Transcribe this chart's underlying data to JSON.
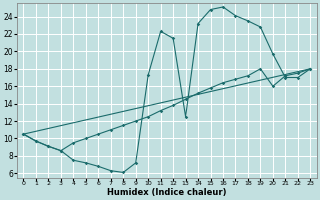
{
  "xlabel": "Humidex (Indice chaleur)",
  "ylabel": "",
  "xlim": [
    -0.5,
    23.5
  ],
  "ylim": [
    5.5,
    25.5
  ],
  "xticks": [
    0,
    1,
    2,
    3,
    4,
    5,
    6,
    7,
    8,
    9,
    10,
    11,
    12,
    13,
    14,
    15,
    16,
    17,
    18,
    19,
    20,
    21,
    22,
    23
  ],
  "yticks": [
    6,
    8,
    10,
    12,
    14,
    16,
    18,
    20,
    22,
    24
  ],
  "bg_color": "#c2e0e0",
  "grid_color": "#ffffff",
  "line_color": "#1a6b6b",
  "line1_x": [
    0,
    1,
    2,
    3,
    4,
    5,
    6,
    7,
    8,
    9,
    10,
    11,
    12,
    13,
    14,
    15,
    16,
    17,
    18,
    19,
    20,
    21,
    22,
    23
  ],
  "line1_y": [
    10.5,
    9.7,
    9.1,
    8.6,
    7.5,
    7.2,
    6.8,
    6.3,
    6.1,
    7.2,
    17.3,
    22.3,
    21.5,
    12.5,
    23.2,
    24.8,
    25.1,
    24.1,
    23.5,
    22.8,
    19.7,
    17.0,
    17.0,
    18.0
  ],
  "line2_x": [
    0,
    1,
    2,
    3,
    4,
    5,
    6,
    7,
    8,
    9,
    10,
    11,
    12,
    13,
    14,
    15,
    16,
    17,
    18,
    19,
    20,
    21,
    22,
    23
  ],
  "line2_y": [
    10.5,
    9.7,
    9.1,
    8.6,
    9.5,
    10.0,
    10.5,
    11.0,
    11.5,
    12.0,
    12.5,
    13.2,
    13.8,
    14.5,
    15.2,
    15.8,
    16.4,
    16.8,
    17.2,
    18.0,
    16.0,
    17.2,
    17.5,
    18.0
  ],
  "line3_x": [
    0,
    23
  ],
  "line3_y": [
    10.5,
    18.0
  ]
}
